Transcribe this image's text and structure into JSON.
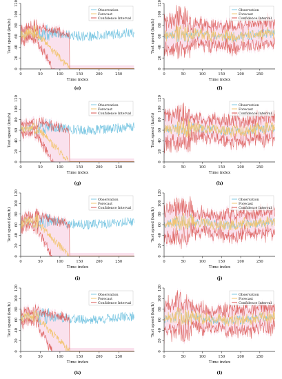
{
  "chart_data": {
    "type": "line",
    "panels": [
      {
        "id": "e",
        "caption": "(e)",
        "xlabel": "Time index",
        "ylabel": "Test speed (km/h)",
        "xlim": [
          0,
          290
        ],
        "ylim": [
          0,
          120
        ],
        "xticks": [
          0,
          50,
          100,
          150,
          200,
          250
        ],
        "yticks": [
          0,
          20,
          40,
          60,
          80,
          100,
          120
        ],
        "legend": [
          "Observation",
          "Forecast",
          "Confidence Interval"
        ],
        "legend_position": "top-right",
        "forecast_mode": "collapse",
        "observation": {
          "mean": 63,
          "amplitude": 9,
          "seed": 5
        }
      },
      {
        "id": "f",
        "caption": "(f)",
        "xlabel": "Time index",
        "ylabel": "Test speed (km/h)",
        "xlim": [
          0,
          290
        ],
        "ylim": [
          0,
          120
        ],
        "xticks": [
          0,
          50,
          100,
          150,
          200,
          250
        ],
        "yticks": [
          0,
          20,
          40,
          60,
          80,
          100,
          120
        ],
        "legend": [
          "Observation",
          "Forecast",
          "Confidence Interval"
        ],
        "legend_position": "top-right",
        "forecast_mode": "track",
        "observation": {
          "mean": 62,
          "amplitude": 9,
          "seed": 11
        }
      },
      {
        "id": "g",
        "caption": "(g)",
        "xlabel": "Time index",
        "ylabel": "Test speed (km/h)",
        "xlim": [
          0,
          290
        ],
        "ylim": [
          0,
          120
        ],
        "xticks": [
          0,
          50,
          100,
          150,
          200,
          250
        ],
        "yticks": [
          0,
          20,
          40,
          60,
          80,
          100,
          120
        ],
        "legend": [
          "Observation",
          "Forecast",
          "Confidence Interval"
        ],
        "legend_position": "top-right",
        "forecast_mode": "collapse",
        "observation": {
          "mean": 63,
          "amplitude": 9,
          "seed": 17
        }
      },
      {
        "id": "h",
        "caption": "(h)",
        "xlabel": "Time index",
        "ylabel": "Test speed (km/h)",
        "xlim": [
          0,
          290
        ],
        "ylim": [
          0,
          120
        ],
        "xticks": [
          0,
          50,
          100,
          150,
          200,
          250
        ],
        "yticks": [
          0,
          20,
          40,
          60,
          80,
          100,
          120
        ],
        "legend": [
          "Observation",
          "Forecast",
          "Confidence Interval"
        ],
        "legend_position": "top-right",
        "forecast_mode": "track",
        "observation": {
          "mean": 62,
          "amplitude": 9,
          "seed": 23
        }
      },
      {
        "id": "i",
        "caption": "(i)",
        "xlabel": "Time index",
        "ylabel": "Test speed (km/h)",
        "xlim": [
          0,
          290
        ],
        "ylim": [
          0,
          120
        ],
        "xticks": [
          0,
          50,
          100,
          150,
          200,
          250
        ],
        "yticks": [
          0,
          20,
          40,
          60,
          80,
          100,
          120
        ],
        "legend": [
          "Observation",
          "Forecast",
          "Confidence Interval"
        ],
        "legend_position": "top-right",
        "forecast_mode": "collapse",
        "observation": {
          "mean": 63,
          "amplitude": 9,
          "seed": 31
        }
      },
      {
        "id": "j",
        "caption": "(j)",
        "xlabel": "Time index",
        "ylabel": "Test speed (km/h)",
        "xlim": [
          0,
          290
        ],
        "ylim": [
          0,
          120
        ],
        "xticks": [
          0,
          50,
          100,
          150,
          200,
          250
        ],
        "yticks": [
          0,
          20,
          40,
          60,
          80,
          100,
          120
        ],
        "legend": [
          "Observation",
          "Forecast",
          "Confidence Interval"
        ],
        "legend_position": "top-right",
        "forecast_mode": "track",
        "observation": {
          "mean": 62,
          "amplitude": 9,
          "seed": 37
        }
      },
      {
        "id": "k",
        "caption": "(k)",
        "xlabel": "Time index",
        "ylabel": "Test speed (km/h)",
        "xlim": [
          0,
          290
        ],
        "ylim": [
          0,
          120
        ],
        "xticks": [
          0,
          50,
          100,
          150,
          200,
          250
        ],
        "yticks": [
          0,
          20,
          40,
          60,
          80,
          100,
          120
        ],
        "legend": [
          "Observation",
          "Forecast",
          "Confidence Interval"
        ],
        "legend_position": "top-right",
        "forecast_mode": "collapse",
        "observation": {
          "mean": 63,
          "amplitude": 9,
          "seed": 41
        }
      },
      {
        "id": "l",
        "caption": "(l)",
        "xlabel": "Time index",
        "ylabel": "Test speed (km/h)",
        "xlim": [
          0,
          290
        ],
        "ylim": [
          0,
          120
        ],
        "xticks": [
          0,
          50,
          100,
          150,
          200,
          250
        ],
        "yticks": [
          0,
          20,
          40,
          60,
          80,
          100,
          120
        ],
        "legend": [
          "Observation",
          "Forecast",
          "Confidence Interval"
        ],
        "legend_position": "top-right",
        "forecast_mode": "track",
        "observation": {
          "mean": 62,
          "amplitude": 9,
          "seed": 47
        }
      }
    ]
  },
  "colors": {
    "observation": "#7ec8e3",
    "forecast": "#f2c572",
    "interval": "#d9534f",
    "band": "#f6c9de",
    "axis": "#333333",
    "text": "#111111"
  }
}
